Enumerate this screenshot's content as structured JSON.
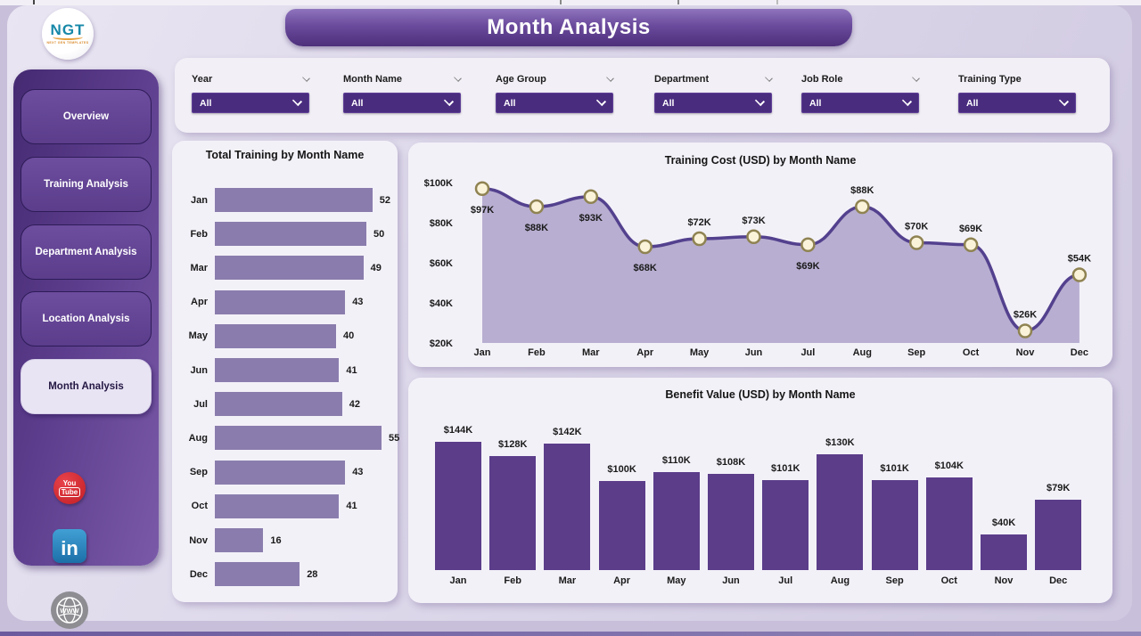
{
  "page": {
    "title": "Month Analysis"
  },
  "logo": {
    "text": "NGT",
    "tagline": "NEXT GEN TEMPLATES"
  },
  "sidebar": {
    "items": [
      {
        "label": "Overview",
        "active": false
      },
      {
        "label": "Training Analysis",
        "active": false
      },
      {
        "label": "Department Analysis",
        "active": false
      },
      {
        "label": "Location Analysis",
        "active": false
      },
      {
        "label": "Month Analysis",
        "active": true
      }
    ],
    "social": [
      {
        "name": "YouTube",
        "line1": "You",
        "line2": "Tube"
      },
      {
        "name": "LinkedIn",
        "glyph": "in"
      },
      {
        "name": "Website",
        "glyph": "WWW"
      }
    ]
  },
  "filters": [
    {
      "label": "Year",
      "value": "All",
      "label_chevron": true
    },
    {
      "label": "Month Name",
      "value": "All",
      "label_chevron": true
    },
    {
      "label": "Age Group",
      "value": "All",
      "label_chevron": true
    },
    {
      "label": "Department",
      "value": "All",
      "label_chevron": true
    },
    {
      "label": "Job Role",
      "value": "All",
      "label_chevron": true
    },
    {
      "label": "Training Type",
      "value": "All",
      "label_chevron": false
    }
  ],
  "theme": {
    "accent_dark": "#4a2c7f",
    "sidebar_purple": "#5c3d8d",
    "card_bg": "#f3f1f8",
    "background": "#c8bfda"
  },
  "chart_data": [
    {
      "type": "bar",
      "orientation": "horizontal",
      "title": "Total Training by Month Name",
      "categories": [
        "Jan",
        "Feb",
        "Mar",
        "Apr",
        "May",
        "Jun",
        "Jul",
        "Aug",
        "Sep",
        "Oct",
        "Nov",
        "Dec"
      ],
      "values": [
        52,
        50,
        49,
        43,
        40,
        41,
        42,
        55,
        43,
        41,
        16,
        28
      ],
      "xlim": [
        0,
        60
      ],
      "grid": false,
      "bar_color": "#8a7dad"
    },
    {
      "type": "area",
      "title": "Training Cost (USD) by Month Name",
      "categories": [
        "Jan",
        "Feb",
        "Mar",
        "Apr",
        "May",
        "Jun",
        "Jul",
        "Aug",
        "Sep",
        "Oct",
        "Nov",
        "Dec"
      ],
      "values": [
        97,
        88,
        93,
        68,
        72,
        73,
        69,
        88,
        70,
        69,
        26,
        54
      ],
      "labels": [
        "$97K",
        "$88K",
        "$93K",
        "$68K",
        "$72K",
        "$73K",
        "$69K",
        "$88K",
        "$70K",
        "$69K",
        "$26K",
        "$54K"
      ],
      "label_below": [
        true,
        true,
        true,
        true,
        false,
        false,
        true,
        false,
        false,
        false,
        false,
        false
      ],
      "ylim": [
        20,
        100
      ],
      "ytick_values": [
        100,
        80,
        60,
        40,
        20
      ],
      "ytick_labels": [
        "$100K",
        "$80K",
        "$60K",
        "$40K",
        "$20K"
      ],
      "grid": false,
      "line_color": "#53418e",
      "fill_color": "#b4aacf",
      "marker_fill": "#faf3da",
      "marker_stroke": "#8f8352"
    },
    {
      "type": "bar",
      "orientation": "vertical",
      "title": "Benefit Value (USD) by Month Name",
      "categories": [
        "Jan",
        "Feb",
        "Mar",
        "Apr",
        "May",
        "Jun",
        "Jul",
        "Aug",
        "Sep",
        "Oct",
        "Nov",
        "Dec"
      ],
      "values": [
        144,
        128,
        142,
        100,
        110,
        108,
        101,
        130,
        101,
        104,
        40,
        79
      ],
      "labels": [
        "$144K",
        "$128K",
        "$142K",
        "$100K",
        "$110K",
        "$108K",
        "$101K",
        "$130K",
        "$101K",
        "$104K",
        "$40K",
        "$79K"
      ],
      "ylim": [
        0,
        160
      ],
      "grid": false,
      "bar_color": "#5b3d8a"
    }
  ]
}
